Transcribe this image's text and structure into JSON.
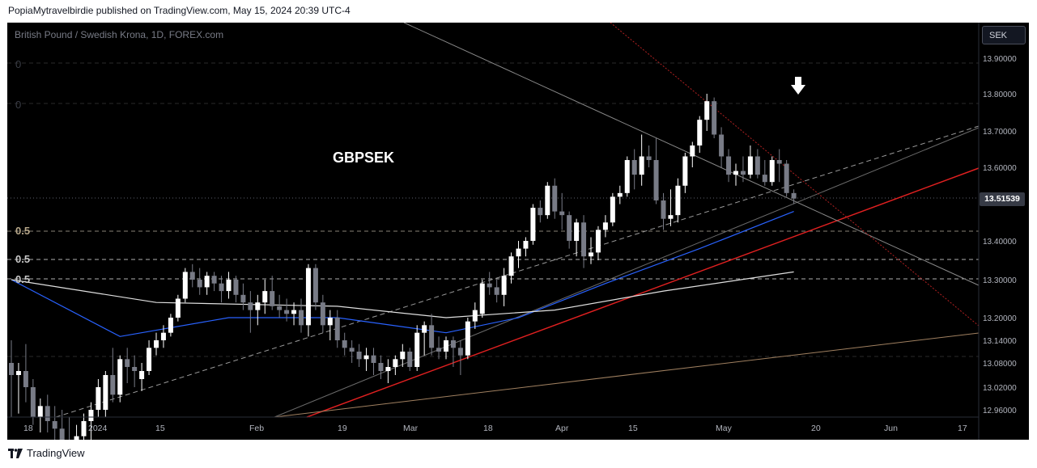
{
  "publish_line": "PopiaMytravelbirdie published on TradingView.com, May 15, 2024 20:39 UTC-4",
  "symbol_line": "British Pound / Swedish Krona, 1D, FOREX.com",
  "currency": "SEK",
  "ticker_label": "GBPSEK",
  "last_price_label": "13.51539",
  "fib_labels": [
    "0",
    "0",
    "0.5",
    "0.5",
    "0.5"
  ],
  "footer_brand": "TradingView",
  "icons": [
    "tradingview-logo-icon",
    "down-arrow-icon"
  ],
  "colors": {
    "background": "#000000",
    "candle_up": "#ffffff",
    "candle_down": "#787b86",
    "ma_blue": "#2962ff",
    "ma_white": "#e0e0e0",
    "trend_red": "#e02020",
    "trend_gray": "#808080",
    "trend_brown": "#a08060"
  },
  "chart_data": {
    "type": "candlestick",
    "title": "British Pound / Swedish Krona, 1D, FOREX.com",
    "x_tick_labels": [
      "18",
      "2024",
      "15",
      "Feb",
      "19",
      "Mar",
      "18",
      "Apr",
      "15",
      "May",
      "20",
      "Jun",
      "17"
    ],
    "y_tick_labels": [
      "13.90000",
      "13.80000",
      "13.70000",
      "13.60000",
      "13.40000",
      "13.30000",
      "13.20000",
      "13.14000",
      "13.08000",
      "13.02000",
      "12.96000"
    ],
    "y_tick_values": [
      13.9,
      13.8,
      13.7,
      13.6,
      13.4,
      13.3,
      13.2,
      13.14,
      13.08,
      13.02,
      12.96
    ],
    "last_price": 13.51539,
    "candles": [
      {
        "o": 13.08,
        "h": 13.14,
        "l": 12.94,
        "c": 13.05
      },
      {
        "o": 13.05,
        "h": 13.08,
        "l": 12.95,
        "c": 13.06
      },
      {
        "o": 13.06,
        "h": 13.13,
        "l": 12.98,
        "c": 13.02
      },
      {
        "o": 13.02,
        "h": 13.04,
        "l": 12.92,
        "c": 12.94
      },
      {
        "o": 12.94,
        "h": 12.99,
        "l": 12.9,
        "c": 12.97
      },
      {
        "o": 12.97,
        "h": 13.0,
        "l": 12.9,
        "c": 12.93
      },
      {
        "o": 12.93,
        "h": 12.97,
        "l": 12.88,
        "c": 12.91
      },
      {
        "o": 12.91,
        "h": 12.96,
        "l": 12.86,
        "c": 12.88
      },
      {
        "o": 12.88,
        "h": 12.94,
        "l": 12.84,
        "c": 12.86
      },
      {
        "o": 12.86,
        "h": 12.92,
        "l": 12.82,
        "c": 12.89
      },
      {
        "o": 12.89,
        "h": 12.95,
        "l": 12.85,
        "c": 12.93
      },
      {
        "o": 12.93,
        "h": 12.98,
        "l": 12.88,
        "c": 12.96
      },
      {
        "o": 12.96,
        "h": 13.04,
        "l": 12.94,
        "c": 13.02
      },
      {
        "o": 12.96,
        "h": 13.06,
        "l": 12.94,
        "c": 13.05
      },
      {
        "o": 13.05,
        "h": 13.12,
        "l": 12.98,
        "c": 13.0
      },
      {
        "o": 13.0,
        "h": 13.1,
        "l": 12.98,
        "c": 13.09
      },
      {
        "o": 13.09,
        "h": 13.12,
        "l": 13.03,
        "c": 13.07
      },
      {
        "o": 13.07,
        "h": 13.1,
        "l": 13.02,
        "c": 13.06
      },
      {
        "o": 13.04,
        "h": 13.08,
        "l": 13.01,
        "c": 13.06
      },
      {
        "o": 13.06,
        "h": 13.14,
        "l": 13.05,
        "c": 13.12
      },
      {
        "o": 13.12,
        "h": 13.16,
        "l": 13.1,
        "c": 13.14
      },
      {
        "o": 13.14,
        "h": 13.18,
        "l": 13.12,
        "c": 13.16
      },
      {
        "o": 13.16,
        "h": 13.21,
        "l": 13.15,
        "c": 13.2
      },
      {
        "o": 13.2,
        "h": 13.26,
        "l": 13.19,
        "c": 13.25
      },
      {
        "o": 13.25,
        "h": 13.33,
        "l": 13.24,
        "c": 13.32
      },
      {
        "o": 13.32,
        "h": 13.34,
        "l": 13.28,
        "c": 13.3
      },
      {
        "o": 13.3,
        "h": 13.33,
        "l": 13.26,
        "c": 13.28
      },
      {
        "o": 13.28,
        "h": 13.32,
        "l": 13.26,
        "c": 13.31
      },
      {
        "o": 13.31,
        "h": 13.32,
        "l": 13.27,
        "c": 13.29
      },
      {
        "o": 13.29,
        "h": 13.31,
        "l": 13.24,
        "c": 13.27
      },
      {
        "o": 13.27,
        "h": 13.32,
        "l": 13.25,
        "c": 13.3
      },
      {
        "o": 13.3,
        "h": 13.31,
        "l": 13.24,
        "c": 13.26
      },
      {
        "o": 13.26,
        "h": 13.29,
        "l": 13.22,
        "c": 13.24
      },
      {
        "o": 13.24,
        "h": 13.27,
        "l": 13.16,
        "c": 13.22
      },
      {
        "o": 13.22,
        "h": 13.26,
        "l": 13.18,
        "c": 13.24
      },
      {
        "o": 13.24,
        "h": 13.3,
        "l": 13.21,
        "c": 13.27
      },
      {
        "o": 13.27,
        "h": 13.31,
        "l": 13.22,
        "c": 13.23
      },
      {
        "o": 13.23,
        "h": 13.26,
        "l": 13.2,
        "c": 13.22
      },
      {
        "o": 13.22,
        "h": 13.25,
        "l": 13.19,
        "c": 13.21
      },
      {
        "o": 13.21,
        "h": 13.24,
        "l": 13.18,
        "c": 13.22
      },
      {
        "o": 13.22,
        "h": 13.25,
        "l": 13.16,
        "c": 13.18
      },
      {
        "o": 13.18,
        "h": 13.34,
        "l": 13.15,
        "c": 13.33
      },
      {
        "o": 13.33,
        "h": 13.34,
        "l": 13.22,
        "c": 13.24
      },
      {
        "o": 13.24,
        "h": 13.26,
        "l": 13.16,
        "c": 13.18
      },
      {
        "o": 13.18,
        "h": 13.22,
        "l": 13.14,
        "c": 13.2
      },
      {
        "o": 13.2,
        "h": 13.22,
        "l": 13.12,
        "c": 13.14
      },
      {
        "o": 13.14,
        "h": 13.16,
        "l": 13.1,
        "c": 13.12
      },
      {
        "o": 13.12,
        "h": 13.14,
        "l": 13.08,
        "c": 13.11
      },
      {
        "o": 13.11,
        "h": 13.13,
        "l": 13.07,
        "c": 13.09
      },
      {
        "o": 13.09,
        "h": 13.12,
        "l": 13.06,
        "c": 13.1
      },
      {
        "o": 13.1,
        "h": 13.12,
        "l": 13.05,
        "c": 13.08
      },
      {
        "o": 13.08,
        "h": 13.1,
        "l": 13.04,
        "c": 13.06
      },
      {
        "o": 13.06,
        "h": 13.09,
        "l": 13.03,
        "c": 13.07
      },
      {
        "o": 13.07,
        "h": 13.1,
        "l": 13.05,
        "c": 13.09
      },
      {
        "o": 13.09,
        "h": 13.13,
        "l": 13.07,
        "c": 13.11
      },
      {
        "o": 13.11,
        "h": 13.12,
        "l": 13.06,
        "c": 13.07
      },
      {
        "o": 13.07,
        "h": 13.18,
        "l": 13.06,
        "c": 13.16
      },
      {
        "o": 13.16,
        "h": 13.19,
        "l": 13.1,
        "c": 13.18
      },
      {
        "o": 13.18,
        "h": 13.21,
        "l": 13.1,
        "c": 13.12
      },
      {
        "o": 13.12,
        "h": 13.15,
        "l": 13.09,
        "c": 13.11
      },
      {
        "o": 13.11,
        "h": 13.15,
        "l": 13.09,
        "c": 13.14
      },
      {
        "o": 13.14,
        "h": 13.15,
        "l": 13.07,
        "c": 13.12
      },
      {
        "o": 13.12,
        "h": 13.14,
        "l": 13.05,
        "c": 13.1
      },
      {
        "o": 13.1,
        "h": 13.2,
        "l": 13.09,
        "c": 13.19
      },
      {
        "o": 13.19,
        "h": 13.24,
        "l": 13.17,
        "c": 13.22
      },
      {
        "o": 13.21,
        "h": 13.3,
        "l": 13.2,
        "c": 13.29
      },
      {
        "o": 13.29,
        "h": 13.32,
        "l": 13.26,
        "c": 13.28
      },
      {
        "o": 13.28,
        "h": 13.3,
        "l": 13.24,
        "c": 13.26
      },
      {
        "o": 13.26,
        "h": 13.33,
        "l": 13.23,
        "c": 13.31
      },
      {
        "o": 13.31,
        "h": 13.37,
        "l": 13.29,
        "c": 13.36
      },
      {
        "o": 13.36,
        "h": 13.4,
        "l": 13.33,
        "c": 13.38
      },
      {
        "o": 13.38,
        "h": 13.41,
        "l": 13.36,
        "c": 13.4
      },
      {
        "o": 13.4,
        "h": 13.5,
        "l": 13.39,
        "c": 13.49
      },
      {
        "o": 13.49,
        "h": 13.51,
        "l": 13.45,
        "c": 13.47
      },
      {
        "o": 13.47,
        "h": 13.56,
        "l": 13.46,
        "c": 13.55
      },
      {
        "o": 13.55,
        "h": 13.57,
        "l": 13.46,
        "c": 13.48
      },
      {
        "o": 13.48,
        "h": 13.53,
        "l": 13.43,
        "c": 13.47
      },
      {
        "o": 13.47,
        "h": 13.48,
        "l": 13.38,
        "c": 13.4
      },
      {
        "o": 13.4,
        "h": 13.46,
        "l": 13.36,
        "c": 13.45
      },
      {
        "o": 13.45,
        "h": 13.47,
        "l": 13.33,
        "c": 13.36
      },
      {
        "o": 13.36,
        "h": 13.41,
        "l": 13.34,
        "c": 13.37
      },
      {
        "o": 13.37,
        "h": 13.44,
        "l": 13.35,
        "c": 13.43
      },
      {
        "o": 13.43,
        "h": 13.47,
        "l": 13.41,
        "c": 13.45
      },
      {
        "o": 13.45,
        "h": 13.53,
        "l": 13.44,
        "c": 13.52
      },
      {
        "o": 13.52,
        "h": 13.55,
        "l": 13.5,
        "c": 13.53
      },
      {
        "o": 13.53,
        "h": 13.63,
        "l": 13.52,
        "c": 13.62
      },
      {
        "o": 13.62,
        "h": 13.65,
        "l": 13.54,
        "c": 13.58
      },
      {
        "o": 13.58,
        "h": 13.69,
        "l": 13.55,
        "c": 13.63
      },
      {
        "o": 13.63,
        "h": 13.66,
        "l": 13.6,
        "c": 13.62
      },
      {
        "o": 13.62,
        "h": 13.68,
        "l": 13.5,
        "c": 13.51
      },
      {
        "o": 13.51,
        "h": 13.53,
        "l": 13.43,
        "c": 13.46
      },
      {
        "o": 13.46,
        "h": 13.54,
        "l": 13.44,
        "c": 13.47
      },
      {
        "o": 13.47,
        "h": 13.57,
        "l": 13.45,
        "c": 13.55
      },
      {
        "o": 13.55,
        "h": 13.64,
        "l": 13.53,
        "c": 13.63
      },
      {
        "o": 13.63,
        "h": 13.67,
        "l": 13.6,
        "c": 13.66
      },
      {
        "o": 13.66,
        "h": 13.74,
        "l": 13.64,
        "c": 13.73
      },
      {
        "o": 13.73,
        "h": 13.8,
        "l": 13.7,
        "c": 13.78
      },
      {
        "o": 13.78,
        "h": 13.79,
        "l": 13.68,
        "c": 13.69
      },
      {
        "o": 13.69,
        "h": 13.71,
        "l": 13.6,
        "c": 13.63
      },
      {
        "o": 13.63,
        "h": 13.65,
        "l": 13.56,
        "c": 13.58
      },
      {
        "o": 13.58,
        "h": 13.61,
        "l": 13.55,
        "c": 13.59
      },
      {
        "o": 13.59,
        "h": 13.63,
        "l": 13.56,
        "c": 13.58
      },
      {
        "o": 13.58,
        "h": 13.66,
        "l": 13.57,
        "c": 13.63
      },
      {
        "o": 13.63,
        "h": 13.65,
        "l": 13.57,
        "c": 13.58
      },
      {
        "o": 13.58,
        "h": 13.62,
        "l": 13.55,
        "c": 13.56
      },
      {
        "o": 13.56,
        "h": 13.63,
        "l": 13.55,
        "c": 13.62
      },
      {
        "o": 13.62,
        "h": 13.65,
        "l": 13.56,
        "c": 13.61
      },
      {
        "o": 13.61,
        "h": 13.62,
        "l": 13.52,
        "c": 13.53
      },
      {
        "o": 13.53,
        "h": 13.54,
        "l": 13.5,
        "c": 13.515
      }
    ],
    "moving_averages": [
      {
        "color": "blue",
        "points": [
          [
            0,
            13.3
          ],
          [
            15,
            13.15
          ],
          [
            30,
            13.2
          ],
          [
            45,
            13.2
          ],
          [
            60,
            13.16
          ],
          [
            70,
            13.2
          ],
          [
            82,
            13.29
          ],
          [
            95,
            13.38
          ],
          [
            108,
            13.48
          ]
        ]
      },
      {
        "color": "white",
        "points": [
          [
            0,
            13.3
          ],
          [
            20,
            13.24
          ],
          [
            45,
            13.23
          ],
          [
            60,
            13.2
          ],
          [
            75,
            13.22
          ],
          [
            90,
            13.27
          ],
          [
            108,
            13.32
          ]
        ]
      }
    ]
  }
}
